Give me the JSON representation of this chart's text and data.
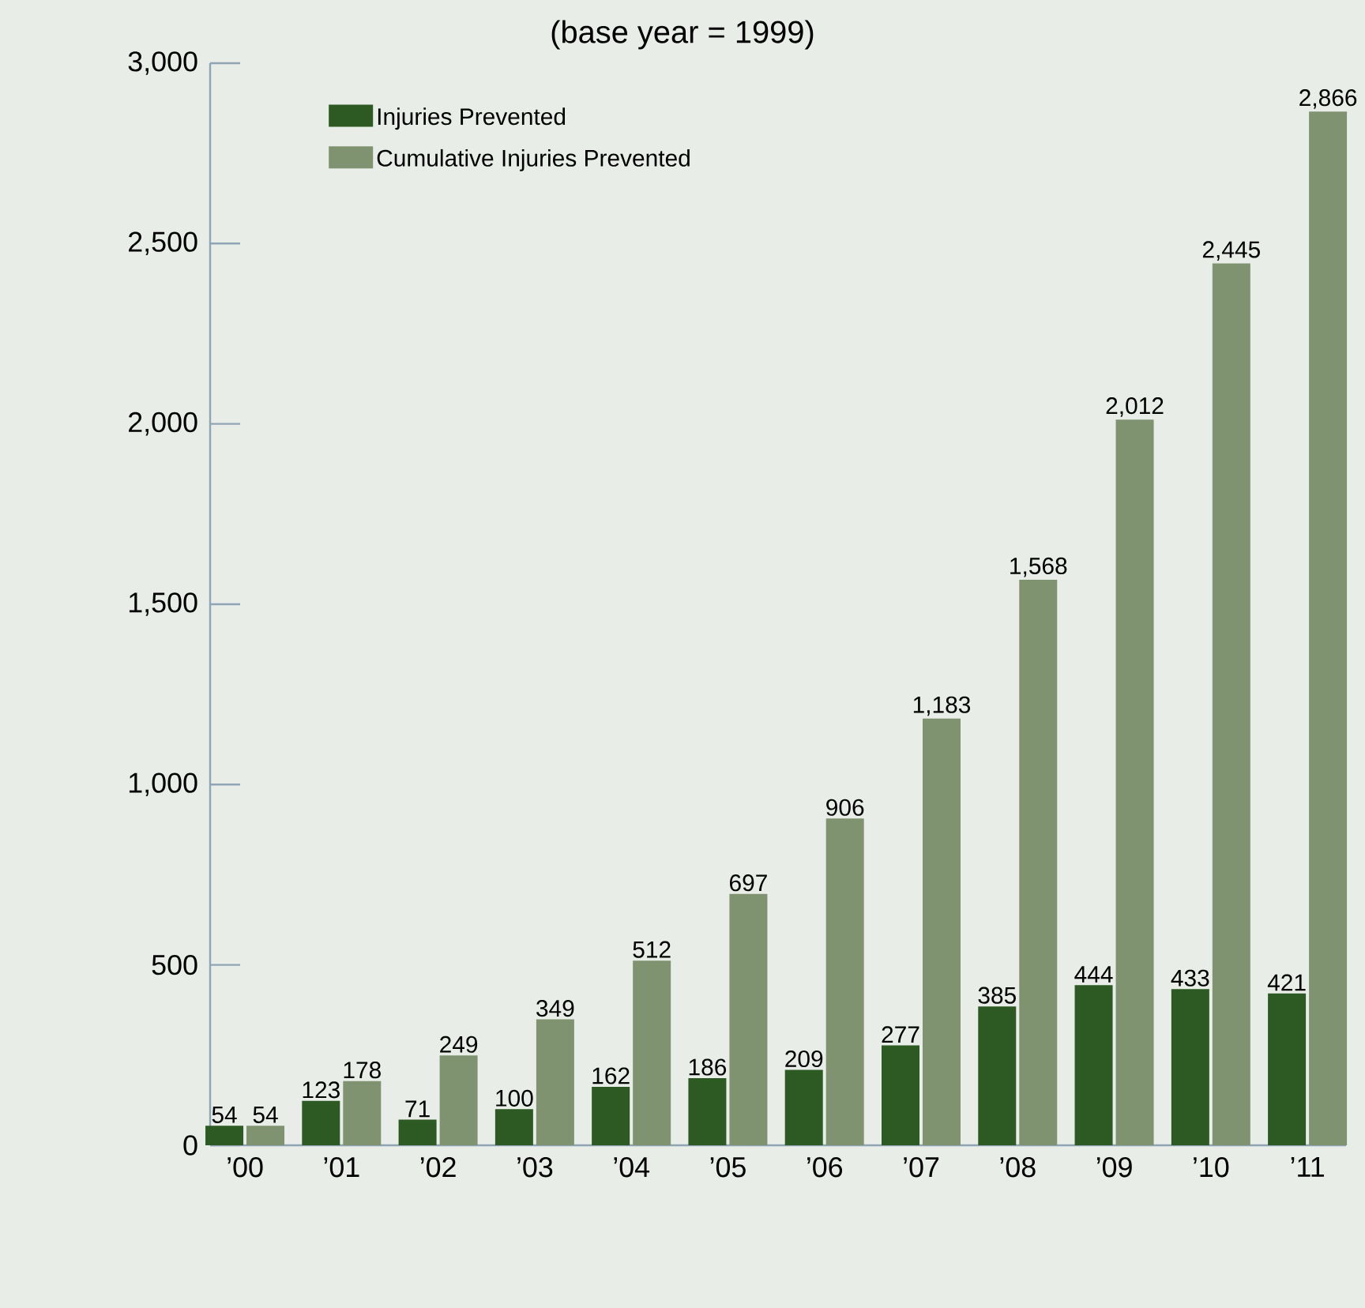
{
  "chart_data": {
    "type": "bar",
    "title": "(base year = 1999)",
    "categories": [
      "’00",
      "’01",
      "’02",
      "’03",
      "’04",
      "’05",
      "’06",
      "’07",
      "’08",
      "’09",
      "’10",
      "’11"
    ],
    "series": [
      {
        "name": "Injuries Prevented",
        "color": "#2c5a22",
        "values": [
          54,
          123,
          71,
          100,
          162,
          186,
          209,
          277,
          385,
          444,
          433,
          421
        ],
        "value_labels": [
          "54",
          "123",
          "71",
          "100",
          "162",
          "186",
          "209",
          "277",
          "385",
          "444",
          "433",
          "421"
        ]
      },
      {
        "name": "Cumulative Injuries Prevented",
        "color": "#809371",
        "values": [
          54,
          178,
          249,
          349,
          512,
          697,
          906,
          1183,
          1568,
          2012,
          2445,
          2866
        ],
        "value_labels": [
          "54",
          "178",
          "249",
          "349",
          "512",
          "697",
          "906",
          "1,183",
          "1,568",
          "2,012",
          "2,445",
          "2,866"
        ]
      }
    ],
    "ylim": [
      0,
      3000
    ],
    "yticks": [
      0,
      500,
      {
        "value": 1000,
        "label": "1,000"
      },
      {
        "value": 1500,
        "label": "1,500"
      },
      {
        "value": 2000,
        "label": "2,000"
      },
      {
        "value": 2500,
        "label": "2,500"
      },
      {
        "value": 3000,
        "label": "3,000"
      }
    ],
    "legend": "top left"
  }
}
